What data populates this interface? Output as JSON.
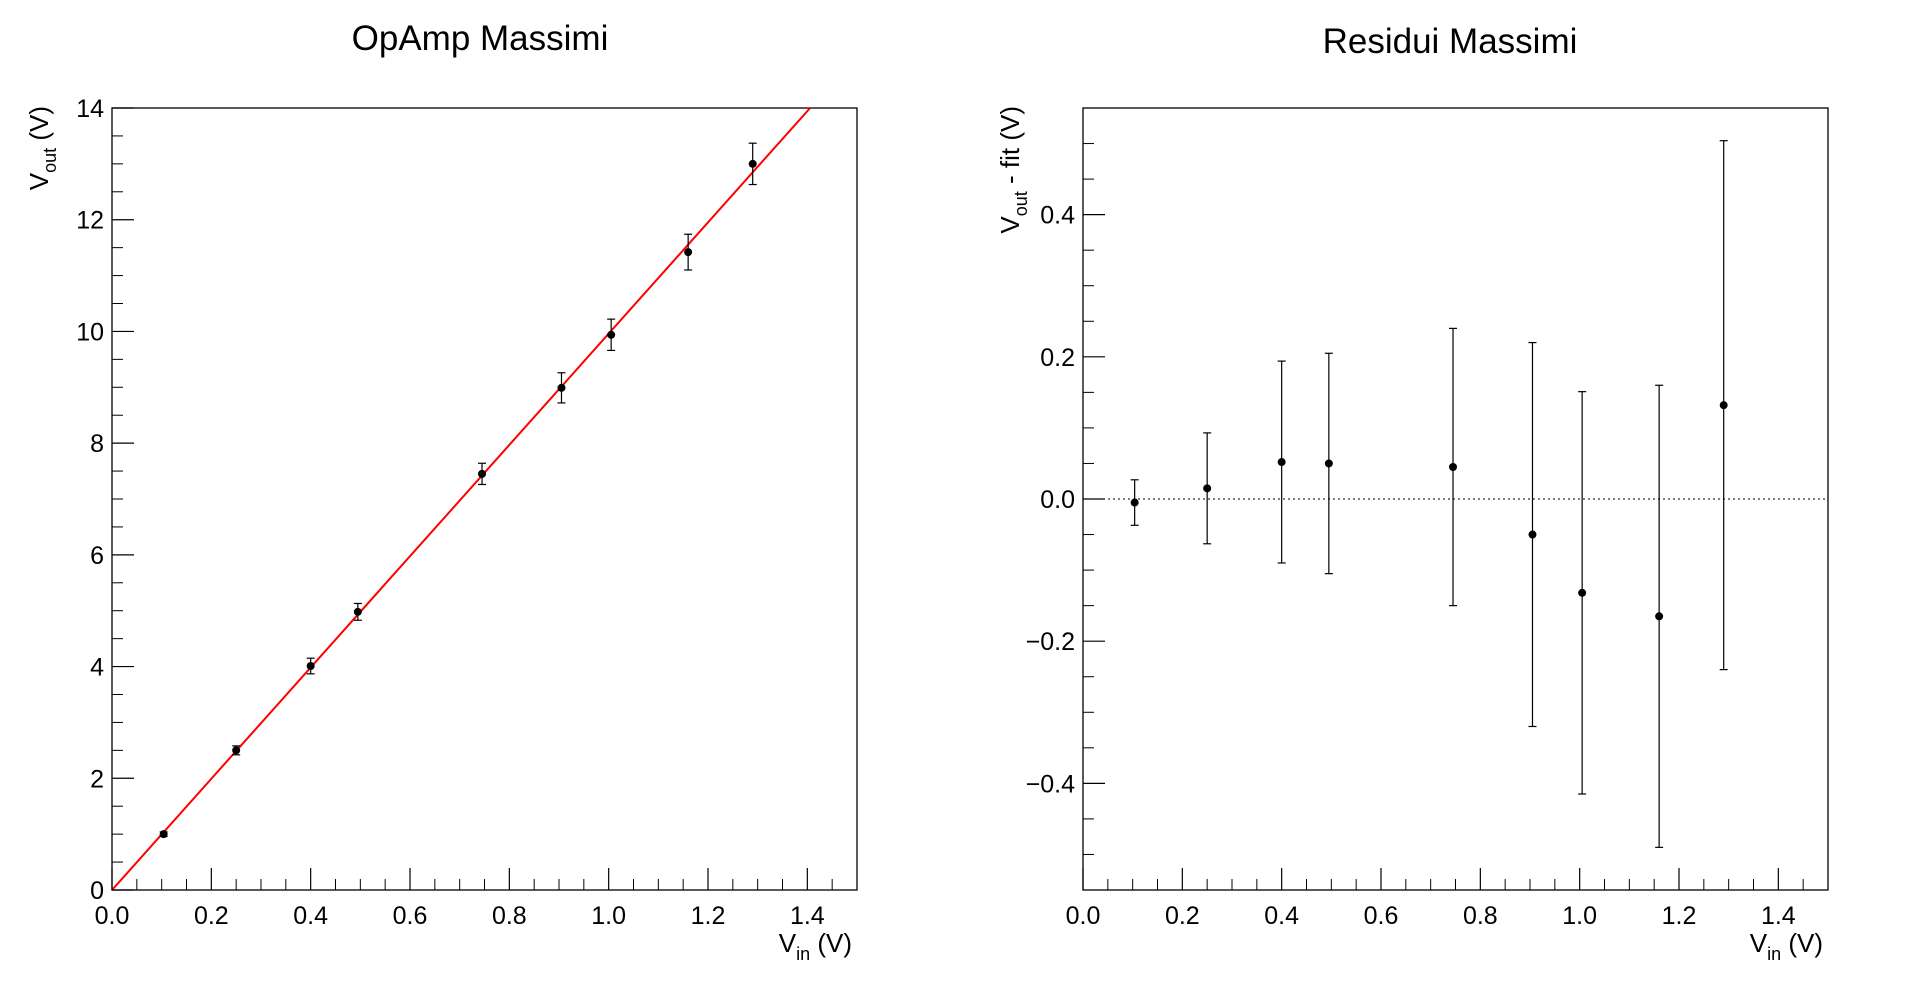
{
  "chart_data": [
    {
      "type": "scatter",
      "title": "OpAmp Massimi",
      "xlabel": {
        "main": "V",
        "sub": "in",
        "unit": " (V)"
      },
      "ylabel": {
        "main": "V",
        "sub": "out",
        "unit": " (V)"
      },
      "xlim": [
        0,
        1.5
      ],
      "ylim": [
        0,
        14
      ],
      "xticks": [
        0.0,
        0.2,
        0.4,
        0.6,
        0.8,
        1.0,
        1.2,
        1.4
      ],
      "xtick_labels": [
        "0.0",
        "0.2",
        "0.4",
        "0.6",
        "0.8",
        "1.0",
        "1.2",
        "1.4"
      ],
      "yticks": [
        0,
        2,
        4,
        6,
        8,
        10,
        12,
        14
      ],
      "ytick_labels": [
        "0",
        "2",
        "4",
        "6",
        "8",
        "10",
        "12",
        "14"
      ],
      "points": [
        {
          "x": 0.104,
          "y": 1.0,
          "err": 0.04
        },
        {
          "x": 0.25,
          "y": 2.5,
          "err": 0.08
        },
        {
          "x": 0.4,
          "y": 4.01,
          "err": 0.14
        },
        {
          "x": 0.495,
          "y": 4.98,
          "err": 0.15
        },
        {
          "x": 0.745,
          "y": 7.45,
          "err": 0.19
        },
        {
          "x": 0.905,
          "y": 8.99,
          "err": 0.27
        },
        {
          "x": 1.005,
          "y": 9.94,
          "err": 0.28
        },
        {
          "x": 1.16,
          "y": 11.42,
          "err": 0.32
        },
        {
          "x": 1.29,
          "y": 13.0,
          "err": 0.37
        }
      ],
      "fit": {
        "type": "linear",
        "slope": 9.96,
        "intercept": 0.0,
        "color": "#ff0000"
      },
      "marker_color": "#000000"
    },
    {
      "type": "scatter",
      "title": "Residui Massimi",
      "xlabel": {
        "main": "V",
        "sub": "in",
        "unit": " (V)"
      },
      "ylabel": {
        "main": "V",
        "sub": "out",
        "unit": " - fit (V)"
      },
      "xlim": [
        0,
        1.5
      ],
      "ylim": [
        -0.55,
        0.55
      ],
      "xticks": [
        0.0,
        0.2,
        0.4,
        0.6,
        0.8,
        1.0,
        1.2,
        1.4
      ],
      "xtick_labels": [
        "0.0",
        "0.2",
        "0.4",
        "0.6",
        "0.8",
        "1.0",
        "1.2",
        "1.4"
      ],
      "yticks": [
        -0.4,
        -0.2,
        0.0,
        0.2,
        0.4
      ],
      "ytick_labels": [
        "−0.4",
        "−0.2",
        "0.0",
        "0.2",
        "0.4"
      ],
      "points": [
        {
          "x": 0.104,
          "y": -0.005,
          "err": 0.032
        },
        {
          "x": 0.25,
          "y": 0.015,
          "err": 0.078
        },
        {
          "x": 0.4,
          "y": 0.052,
          "err": 0.142
        },
        {
          "x": 0.495,
          "y": 0.05,
          "err": 0.155
        },
        {
          "x": 0.745,
          "y": 0.045,
          "err": 0.195
        },
        {
          "x": 0.905,
          "y": -0.05,
          "err": 0.27
        },
        {
          "x": 1.005,
          "y": -0.132,
          "err": 0.283
        },
        {
          "x": 1.16,
          "y": -0.165,
          "err": 0.325
        },
        {
          "x": 1.29,
          "y": 0.132,
          "err": 0.372
        }
      ],
      "reference_line": {
        "y": 0.0,
        "style": "dotted"
      },
      "marker_color": "#000000"
    }
  ]
}
